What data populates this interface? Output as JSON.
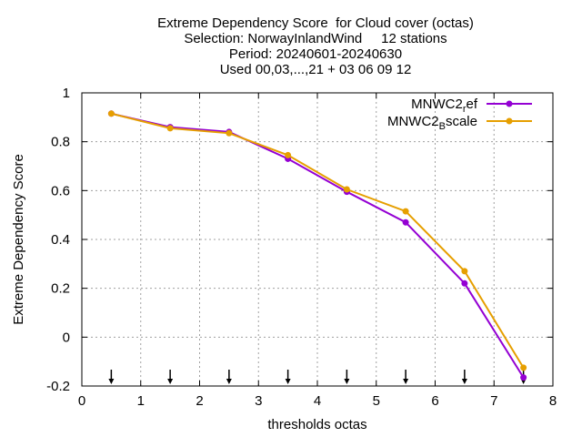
{
  "chart_data": {
    "type": "line",
    "title_lines": [
      "Extreme Dependency Score  for Cloud cover (octas)",
      "Selection: NorwayInlandWind     12 stations",
      "Period: 20240601-20240630",
      "Used 00,03,...,21 + 03 06 09 12"
    ],
    "xlabel": "thresholds octas",
    "ylabel": "Extreme Dependency Score",
    "xlim": [
      0,
      8
    ],
    "ylim": [
      -0.2,
      1
    ],
    "x_ticks": [
      0,
      1,
      2,
      3,
      4,
      5,
      6,
      7,
      8
    ],
    "y_ticks": [
      -0.2,
      0,
      0.2,
      0.4,
      0.6,
      0.8,
      1
    ],
    "y_tick_labels": [
      "-0.2",
      "0",
      "0.2",
      "0.4",
      "0.6",
      "0.8",
      "1"
    ],
    "grid": true,
    "legend_position": "top-right",
    "threshold_arrows_x": [
      0.5,
      1.5,
      2.5,
      3.5,
      4.5,
      5.5,
      6.5,
      7.5
    ],
    "series": [
      {
        "name": "MNWC2_ref",
        "legend_base": "MNWC2",
        "legend_sub": "r",
        "legend_rest": "ef",
        "color": "#9400d3",
        "x": [
          0.5,
          1.5,
          2.5,
          3.5,
          4.5,
          5.5,
          6.5,
          7.5
        ],
        "y": [
          0.915,
          0.86,
          0.84,
          0.73,
          0.595,
          0.47,
          0.22,
          -0.165
        ]
      },
      {
        "name": "MNWC2_Bscale",
        "legend_base": "MNWC2",
        "legend_sub": "B",
        "legend_rest": "scale",
        "color": "#e69f00",
        "x": [
          0.5,
          1.5,
          2.5,
          3.5,
          4.5,
          5.5,
          6.5,
          7.5
        ],
        "y": [
          0.915,
          0.855,
          0.835,
          0.745,
          0.605,
          0.515,
          0.27,
          -0.125
        ]
      }
    ]
  }
}
